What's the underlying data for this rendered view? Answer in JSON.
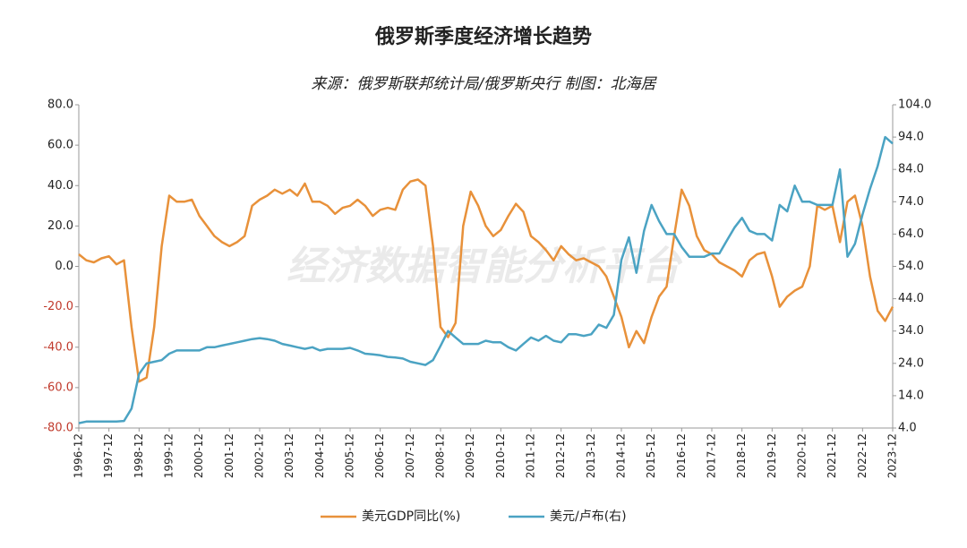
{
  "chart_data": {
    "type": "line",
    "title": "俄罗斯季度经济增长趋势",
    "subtitle": "来源：俄罗斯联邦统计局/俄罗斯央行 制图：北海居",
    "watermark": "经济数据智能分析平台",
    "categories": [
      "1996-12",
      null,
      null,
      null,
      "1997-12",
      null,
      null,
      null,
      "1998-12",
      null,
      null,
      null,
      "1999-12",
      null,
      null,
      null,
      "2000-12",
      null,
      null,
      null,
      "2001-12",
      null,
      null,
      null,
      "2002-12",
      null,
      null,
      null,
      "2003-12",
      null,
      null,
      null,
      "2004-12",
      null,
      null,
      null,
      "2005-12",
      null,
      null,
      null,
      "2006-12",
      null,
      null,
      null,
      "2007-12",
      null,
      null,
      null,
      "2008-12",
      null,
      null,
      null,
      "2009-12",
      null,
      null,
      null,
      "2010-12",
      null,
      null,
      null,
      "2011-12",
      null,
      null,
      null,
      "2012-12",
      null,
      null,
      null,
      "2013-12",
      null,
      null,
      null,
      "2014-12",
      null,
      null,
      null,
      "2015-12",
      null,
      null,
      null,
      "2016-12",
      null,
      null,
      null,
      "2017-12",
      null,
      null,
      null,
      "2018-12",
      null,
      null,
      null,
      "2019-12",
      null,
      null,
      null,
      "2020-12",
      null,
      null,
      null,
      "2021-12",
      null,
      null,
      null,
      "2022-12",
      null,
      null,
      null,
      "2023-12"
    ],
    "series": [
      {
        "name": "美元GDP同比(%)",
        "color": "#e8913a",
        "values": [
          6,
          3,
          2,
          4,
          5,
          1,
          3,
          -30,
          -57,
          -55,
          -30,
          10,
          35,
          32,
          32,
          33,
          25,
          20,
          15,
          12,
          10,
          12,
          15,
          30,
          33,
          35,
          38,
          36,
          38,
          35,
          41,
          32,
          32,
          30,
          26,
          29,
          30,
          33,
          30,
          25,
          28,
          29,
          28,
          38,
          42,
          43,
          40,
          10,
          -30,
          -35,
          -28,
          20,
          37,
          30,
          20,
          15,
          18,
          25,
          31,
          27,
          15,
          12,
          8,
          3,
          10,
          6,
          3,
          4,
          2,
          0,
          -5,
          -15,
          -25,
          -40,
          -32,
          -38,
          -25,
          -15,
          -10,
          15,
          38,
          30,
          15,
          8,
          6,
          2,
          0,
          -2,
          -5,
          3,
          6,
          7,
          -5,
          -20,
          -15,
          -12,
          -10,
          0,
          30,
          28,
          30,
          12,
          32,
          35,
          20,
          -5,
          -22,
          -27,
          -20
        ]
      },
      {
        "name": "美元/卢布(右)",
        "color": "#4ba3c3",
        "axis": "y2",
        "values": [
          5.5,
          6,
          6,
          6,
          6,
          6,
          6.2,
          10,
          20.7,
          24,
          24.5,
          25,
          27,
          28,
          28,
          28,
          28,
          29,
          29,
          29.5,
          30,
          30.5,
          31,
          31.5,
          31.8,
          31.5,
          31,
          30,
          29.5,
          29,
          28.5,
          29,
          28,
          28.5,
          28.5,
          28.5,
          28.8,
          28,
          27,
          26.8,
          26.5,
          26,
          25.8,
          25.5,
          24.5,
          24,
          23.5,
          25,
          29.4,
          34,
          32,
          30,
          30,
          30,
          31,
          30.5,
          30.5,
          29,
          28,
          30,
          32,
          31,
          32.5,
          31,
          30.5,
          33,
          33,
          32.5,
          33,
          36,
          35,
          39,
          56,
          63,
          52,
          65,
          73,
          68,
          64,
          64,
          60,
          57,
          57,
          57,
          58,
          58,
          62,
          66,
          69,
          65,
          64,
          64,
          62,
          73,
          71,
          79,
          74,
          74,
          73,
          73,
          73,
          84,
          57,
          61,
          70,
          78,
          85,
          94,
          92
        ]
      }
    ],
    "ylim": [
      -80,
      80
    ],
    "yticks": [
      {
        "value": -80,
        "label": "-80.0"
      },
      {
        "value": -60,
        "label": "-60.0"
      },
      {
        "value": -40,
        "label": "-40.0"
      },
      {
        "value": -20,
        "label": "-20.0"
      },
      {
        "value": 0,
        "label": "0.0"
      },
      {
        "value": 20,
        "label": "20.0"
      },
      {
        "value": 40,
        "label": "40.0"
      },
      {
        "value": 60,
        "label": "60.0"
      },
      {
        "value": 80,
        "label": "80.0"
      }
    ],
    "y2lim": [
      4,
      104
    ],
    "y2ticks": [
      {
        "value": 4,
        "label": "4.0"
      },
      {
        "value": 14,
        "label": "14.0"
      },
      {
        "value": 24,
        "label": "24.0"
      },
      {
        "value": 34,
        "label": "34.0"
      },
      {
        "value": 44,
        "label": "44.0"
      },
      {
        "value": 54,
        "label": "54.0"
      },
      {
        "value": 64,
        "label": "64.0"
      },
      {
        "value": 74,
        "label": "74.0"
      },
      {
        "value": 84,
        "label": "84.0"
      },
      {
        "value": 94,
        "label": "94.0"
      },
      {
        "value": 104,
        "label": "104.0"
      }
    ],
    "legend": "bottom"
  }
}
